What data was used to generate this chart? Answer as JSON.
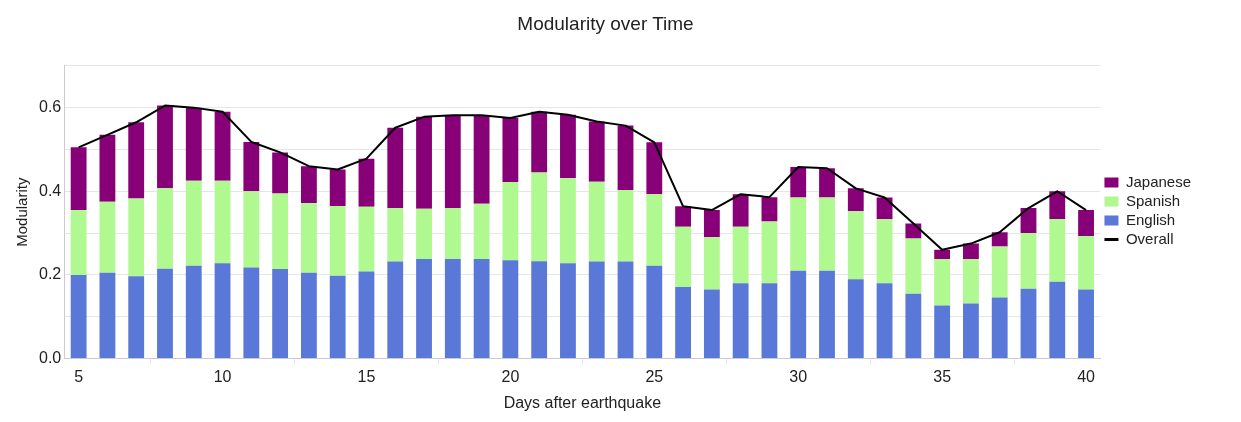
{
  "chart_data": {
    "type": "bar",
    "title": "Modularity over Time",
    "xlabel": "Days after earthquake",
    "ylabel": "Modularity",
    "stacked": true,
    "grid": "y",
    "legend": "right",
    "marker": "none",
    "x": [
      5,
      6,
      7,
      8,
      9,
      10,
      11,
      12,
      13,
      14,
      15,
      16,
      17,
      18,
      19,
      20,
      21,
      22,
      23,
      24,
      25,
      26,
      27,
      28,
      29,
      30,
      31,
      32,
      33,
      34,
      35,
      36,
      37,
      38,
      39,
      40
    ],
    "xlim": [
      4.5,
      40.5
    ],
    "xticks": [
      5,
      10,
      15,
      20,
      25,
      30,
      35,
      40
    ],
    "ylim": [
      0,
      0.7
    ],
    "yticks": [
      {
        "value": 0,
        "label": "0.0"
      },
      {
        "value": 0.1,
        "label": null
      },
      {
        "value": 0.2,
        "label": "0.2"
      },
      {
        "value": 0.3,
        "label": null
      },
      {
        "value": 0.4,
        "label": "0.4"
      },
      {
        "value": 0.5,
        "label": null
      },
      {
        "value": 0.6,
        "label": "0.6"
      },
      {
        "value": 0.7,
        "label": null
      }
    ],
    "series": [
      {
        "name": "English",
        "color": "#5a78d8",
        "values": [
          0.2,
          0.205,
          0.197,
          0.215,
          0.222,
          0.228,
          0.218,
          0.214,
          0.205,
          0.198,
          0.208,
          0.232,
          0.238,
          0.238,
          0.238,
          0.235,
          0.233,
          0.228,
          0.232,
          0.232,
          0.222,
          0.171,
          0.165,
          0.18,
          0.18,
          0.21,
          0.21,
          0.19,
          0.18,
          0.155,
          0.127,
          0.132,
          0.146,
          0.167,
          0.184,
          0.165
        ]
      },
      {
        "name": "Spanish",
        "color": "#b0f890",
        "values": [
          0.155,
          0.17,
          0.186,
          0.193,
          0.203,
          0.197,
          0.182,
          0.181,
          0.167,
          0.167,
          0.155,
          0.128,
          0.12,
          0.122,
          0.132,
          0.187,
          0.212,
          0.204,
          0.191,
          0.171,
          0.171,
          0.144,
          0.125,
          0.135,
          0.148,
          0.175,
          0.175,
          0.162,
          0.153,
          0.132,
          0.111,
          0.106,
          0.122,
          0.133,
          0.15,
          0.128
        ]
      },
      {
        "name": "Japanese",
        "color": "#880077",
        "values": [
          0.15,
          0.16,
          0.182,
          0.197,
          0.175,
          0.165,
          0.118,
          0.098,
          0.088,
          0.087,
          0.115,
          0.192,
          0.22,
          0.222,
          0.212,
          0.153,
          0.145,
          0.151,
          0.144,
          0.154,
          0.124,
          0.049,
          0.065,
          0.078,
          0.058,
          0.073,
          0.07,
          0.055,
          0.052,
          0.036,
          0.022,
          0.037,
          0.034,
          0.06,
          0.066,
          0.062
        ]
      },
      {
        "name": "Overall",
        "type": "line",
        "color": "#000000",
        "values": [
          0.505,
          0.535,
          0.565,
          0.605,
          0.6,
          0.59,
          0.518,
          0.493,
          0.46,
          0.452,
          0.478,
          0.552,
          0.578,
          0.582,
          0.582,
          0.575,
          0.59,
          0.583,
          0.567,
          0.557,
          0.517,
          0.364,
          0.355,
          0.393,
          0.386,
          0.458,
          0.455,
          0.407,
          0.385,
          0.323,
          0.26,
          0.275,
          0.302,
          0.36,
          0.4,
          0.355
        ]
      }
    ]
  }
}
